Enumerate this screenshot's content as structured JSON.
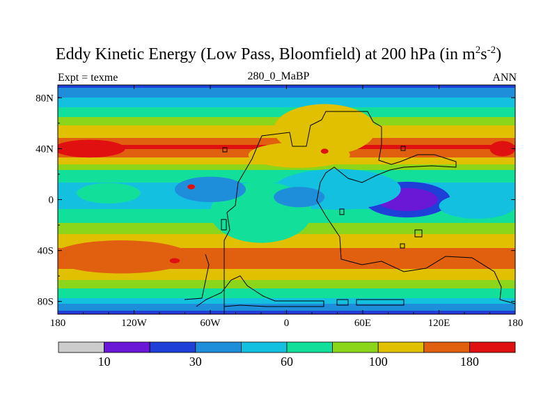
{
  "figure": {
    "title_main": "Eddy Kinetic Energy (Low Pass, Bloomfield) at 200 hPa (in m",
    "title_sup1": "2",
    "title_mid": "s",
    "title_sup2": "-2",
    "title_end": ")",
    "left_label": "Expt = texme",
    "center_label": "280_0_MaBP",
    "right_label": "ANN"
  },
  "chart_data": {
    "type": "contour-map",
    "variable": "Eddy Kinetic Energy (Low Pass, Bloomfield) at 200 hPa",
    "units": "m2s-2",
    "season": "ANN",
    "x_ticks": [
      "180",
      "120W",
      "60W",
      "0",
      "60E",
      "120E",
      "180"
    ],
    "x_tick_values": [
      -180,
      -120,
      -60,
      0,
      60,
      120,
      180
    ],
    "y_ticks": [
      "80N",
      "40N",
      "0",
      "40S",
      "80S"
    ],
    "y_tick_values": [
      80,
      40,
      0,
      -40,
      -80
    ],
    "lon_range": [
      -180,
      180
    ],
    "lat_range": [
      -90,
      90
    ],
    "colorbar": {
      "colors": [
        "#cccccc",
        "#6a18d6",
        "#1e40d8",
        "#1e8edb",
        "#14c0e0",
        "#12e09a",
        "#8bd51a",
        "#e0c000",
        "#e06010",
        "#e01010"
      ],
      "boundaries": [
        0,
        10,
        20,
        30,
        45,
        60,
        80,
        100,
        130,
        180,
        250
      ],
      "labels": [
        "10",
        "30",
        "60",
        "100",
        "180"
      ],
      "label_values": [
        10,
        30,
        60,
        100,
        180
      ]
    },
    "bands_by_latitude": [
      {
        "lat": 90,
        "value": 25
      },
      {
        "lat": 84,
        "value": 40
      },
      {
        "lat": 75,
        "value": 55
      },
      {
        "lat": 62,
        "value": 88
      },
      {
        "lat": 48,
        "value": 135
      },
      {
        "lat": 42,
        "value": 200
      },
      {
        "lat": 33,
        "value": 120
      },
      {
        "lat": 22,
        "value": 70
      },
      {
        "lat": 10,
        "value": 55
      },
      {
        "lat": 0,
        "value": 52
      },
      {
        "lat": -12,
        "value": 65
      },
      {
        "lat": -24,
        "value": 95
      },
      {
        "lat": -35,
        "value": 120
      },
      {
        "lat": -45,
        "value": 160
      },
      {
        "lat": -58,
        "value": 115
      },
      {
        "lat": -68,
        "value": 85
      },
      {
        "lat": -78,
        "value": 55
      },
      {
        "lat": -85,
        "value": 35
      },
      {
        "lat": -90,
        "value": 15
      }
    ],
    "features": [
      {
        "name": "equatorial-minimum",
        "lon": 95,
        "lat": 0,
        "value": 25
      },
      {
        "name": "north-pacific-maximum",
        "lon": -160,
        "lat": 42,
        "value": 200
      },
      {
        "name": "south-pacific-maximum",
        "lon": -130,
        "lat": -45,
        "value": 160
      },
      {
        "name": "south-pacific-core",
        "lon": -88,
        "lat": -48,
        "value": 200
      }
    ]
  }
}
